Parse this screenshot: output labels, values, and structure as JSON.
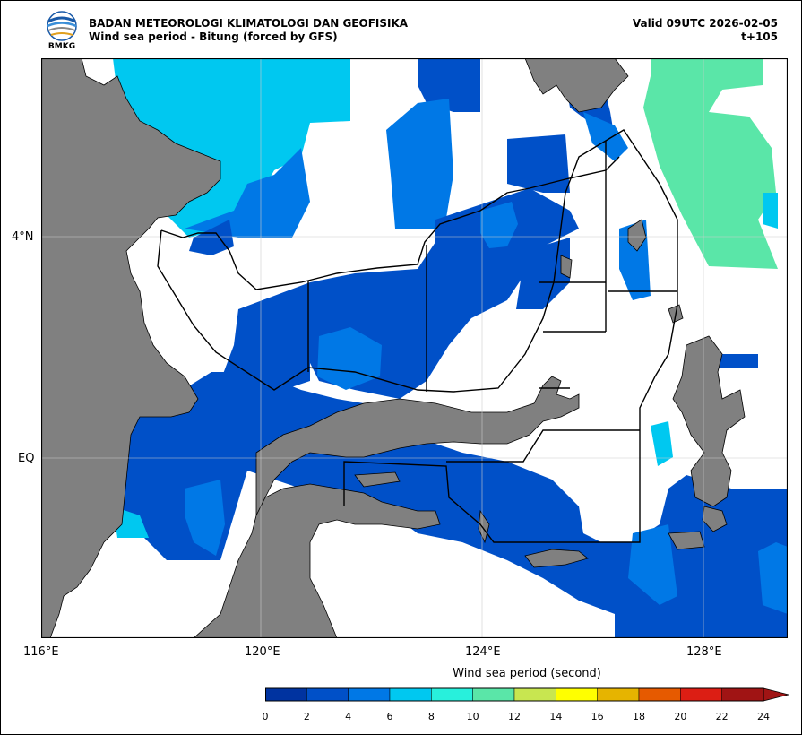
{
  "header": {
    "org": "BADAN METEOROLOGI KLIMATOLOGI DAN GEOFISIKA",
    "subtitle": "Wind sea period - Bitung (forced by GFS)",
    "valid": "Valid 09UTC 2026-02-05",
    "lead": "t+105",
    "logo_text": "BMKG"
  },
  "map": {
    "lon_range": [
      116,
      129.6
    ],
    "lat_range": [
      -3.2,
      7.3
    ],
    "x_ticks": [
      "116°E",
      "120°E",
      "124°E",
      "128°E"
    ],
    "y_ticks": [
      "4°N",
      "EQ"
    ],
    "land_color": "#808080",
    "sea_color": "#ffffff",
    "grid": true
  },
  "colorbar": {
    "title": "Wind sea period (second)",
    "ticks": [
      "0",
      "2",
      "4",
      "6",
      "8",
      "10",
      "12",
      "14",
      "16",
      "18",
      "20",
      "22",
      "24"
    ],
    "colors": [
      "#0033a0",
      "#0050c8",
      "#0078e6",
      "#00c8f0",
      "#28f0dc",
      "#5ae6a8",
      "#c8e650",
      "#ffff00",
      "#e6b400",
      "#e65a00",
      "#dc1e14",
      "#a01414"
    ],
    "extend": "max"
  }
}
